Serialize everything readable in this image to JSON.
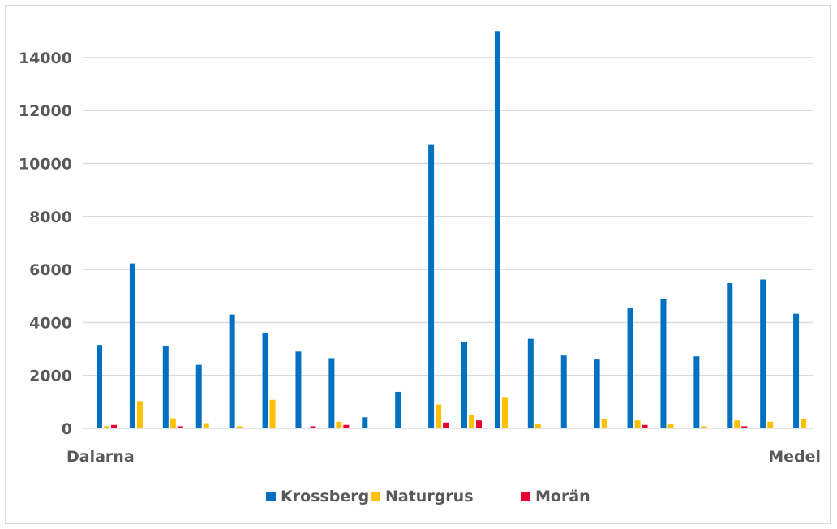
{
  "chart_data": {
    "type": "bar",
    "categories": [
      "Dalarna",
      "",
      "",
      "",
      "",
      "",
      "",
      "",
      "",
      "",
      "",
      "",
      "",
      "",
      "",
      "",
      "",
      "",
      "",
      "",
      "",
      "Medel"
    ],
    "series": [
      {
        "name": "Krossberg",
        "color": "#0070C0",
        "values": [
          3150,
          6230,
          3100,
          2400,
          4300,
          3600,
          2900,
          2650,
          420,
          1380,
          10700,
          3250,
          15000,
          3380,
          2750,
          2600,
          4530,
          4870,
          2720,
          5480,
          5620,
          4330
        ]
      },
      {
        "name": "Naturgrus",
        "color": "#FFC000",
        "values": [
          80,
          1030,
          380,
          200,
          80,
          1080,
          20,
          250,
          0,
          0,
          900,
          500,
          1180,
          150,
          0,
          340,
          300,
          150,
          80,
          300,
          250,
          340
        ]
      },
      {
        "name": "Morän",
        "color": "#E60033",
        "values": [
          130,
          0,
          80,
          0,
          0,
          0,
          80,
          130,
          0,
          0,
          220,
          300,
          0,
          0,
          0,
          0,
          130,
          0,
          0,
          80,
          0,
          0
        ]
      }
    ],
    "y_ticks": [
      "0",
      "2000",
      "4000",
      "6000",
      "8000",
      "10000",
      "12000",
      "14000"
    ],
    "ylim": [
      0,
      14000
    ],
    "grid": true,
    "legend_position": "bottom"
  }
}
